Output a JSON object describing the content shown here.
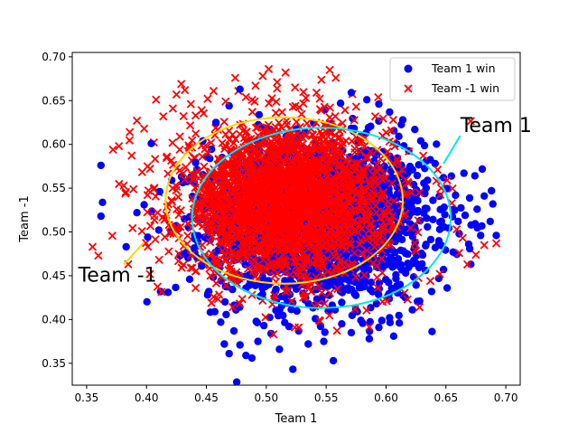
{
  "chart_data": {
    "type": "scatter",
    "title": "",
    "xlabel": "Team 1",
    "ylabel": "Team -1",
    "xlim": [
      0.338,
      0.712
    ],
    "ylim": [
      0.325,
      0.705
    ],
    "xticks": [
      0.35,
      0.4,
      0.45,
      0.5,
      0.55,
      0.6,
      0.65,
      0.7
    ],
    "xtick_labels": [
      "0.35",
      "0.40",
      "0.45",
      "0.50",
      "0.55",
      "0.60",
      "0.65",
      "0.70"
    ],
    "yticks": [
      0.35,
      0.4,
      0.45,
      0.5,
      0.55,
      0.6,
      0.65,
      0.7
    ],
    "ytick_labels": [
      "0.35",
      "0.40",
      "0.45",
      "0.50",
      "0.55",
      "0.60",
      "0.65",
      "0.70"
    ],
    "grid": false,
    "legend_position": "top-right",
    "series": [
      {
        "name": "Team 1 win",
        "marker": "circle",
        "color": "#0000ff",
        "cloud": {
          "center": [
            0.545,
            0.513
          ],
          "sd": [
            0.045,
            0.044
          ],
          "count": 2200
        },
        "points": [
          [
            0.362,
            0.576
          ],
          [
            0.362,
            0.518
          ],
          [
            0.383,
            0.483
          ],
          [
            0.392,
            0.522
          ],
          [
            0.398,
            0.531
          ],
          [
            0.401,
            0.494
          ],
          [
            0.404,
            0.601
          ],
          [
            0.411,
            0.546
          ],
          [
            0.418,
            0.431
          ],
          [
            0.421,
            0.559
          ],
          [
            0.428,
            0.473
          ],
          [
            0.436,
            0.446
          ],
          [
            0.441,
            0.579
          ],
          [
            0.446,
            0.461
          ],
          [
            0.452,
            0.432
          ],
          [
            0.457,
            0.409
          ],
          [
            0.462,
            0.397
          ],
          [
            0.465,
            0.372
          ],
          [
            0.469,
            0.361
          ],
          [
            0.473,
            0.387
          ],
          [
            0.478,
            0.371
          ],
          [
            0.483,
            0.359
          ],
          [
            0.488,
            0.356
          ],
          [
            0.493,
            0.375
          ],
          [
            0.498,
            0.393
          ],
          [
            0.504,
            0.384
          ],
          [
            0.511,
            0.366
          ],
          [
            0.519,
            0.392
          ],
          [
            0.527,
            0.387
          ],
          [
            0.535,
            0.372
          ],
          [
            0.541,
            0.401
          ],
          [
            0.548,
            0.375
          ],
          [
            0.556,
            0.353
          ],
          [
            0.563,
            0.395
          ],
          [
            0.571,
            0.385
          ],
          [
            0.579,
            0.399
          ],
          [
            0.586,
            0.378
          ],
          [
            0.594,
            0.391
          ],
          [
            0.603,
            0.402
          ],
          [
            0.611,
            0.396
          ],
          [
            0.616,
            0.425
          ],
          [
            0.622,
            0.411
          ],
          [
            0.628,
            0.421
          ],
          [
            0.633,
            0.456
          ],
          [
            0.638,
            0.432
          ],
          [
            0.644,
            0.447
          ],
          [
            0.651,
            0.436
          ],
          [
            0.656,
            0.477
          ],
          [
            0.661,
            0.498
          ],
          [
            0.666,
            0.519
          ],
          [
            0.671,
            0.508
          ],
          [
            0.676,
            0.526
          ],
          [
            0.682,
            0.541
          ],
          [
            0.688,
            0.547
          ],
          [
            0.687,
            0.512
          ],
          [
            0.692,
            0.496
          ],
          [
            0.679,
            0.496
          ],
          [
            0.669,
            0.486
          ],
          [
            0.665,
            0.567
          ],
          [
            0.658,
            0.542
          ],
          [
            0.648,
            0.562
          ],
          [
            0.641,
            0.578
          ],
          [
            0.629,
            0.604
          ],
          [
            0.624,
            0.617
          ],
          [
            0.614,
            0.628
          ],
          [
            0.603,
            0.637
          ],
          [
            0.594,
            0.646
          ],
          [
            0.584,
            0.651
          ],
          [
            0.571,
            0.659
          ],
          [
            0.562,
            0.647
          ],
          [
            0.478,
            0.663
          ],
          [
            0.469,
            0.644
          ],
          [
            0.458,
            0.625
          ],
          [
            0.447,
            0.604
          ]
        ]
      },
      {
        "name": "Team -1 win",
        "marker": "x",
        "color": "#ff0000",
        "cloud": {
          "center": [
            0.515,
            0.535
          ],
          "sd": [
            0.043,
            0.042
          ],
          "count": 2400
        },
        "points": [
          [
            0.355,
            0.483
          ],
          [
            0.372,
            0.594
          ],
          [
            0.377,
            0.598
          ],
          [
            0.381,
            0.553
          ],
          [
            0.386,
            0.614
          ],
          [
            0.392,
            0.627
          ],
          [
            0.398,
            0.618
          ],
          [
            0.403,
            0.572
          ],
          [
            0.406,
            0.549
          ],
          [
            0.408,
            0.651
          ],
          [
            0.414,
            0.632
          ],
          [
            0.417,
            0.586
          ],
          [
            0.422,
            0.641
          ],
          [
            0.425,
            0.657
          ],
          [
            0.429,
            0.669
          ],
          [
            0.432,
            0.662
          ],
          [
            0.437,
            0.646
          ],
          [
            0.441,
            0.633
          ],
          [
            0.446,
            0.639
          ],
          [
            0.451,
            0.652
          ],
          [
            0.456,
            0.661
          ],
          [
            0.466,
            0.649
          ],
          [
            0.474,
            0.676
          ],
          [
            0.483,
            0.654
          ],
          [
            0.491,
            0.667
          ],
          [
            0.497,
            0.678
          ],
          [
            0.502,
            0.686
          ],
          [
            0.509,
            0.671
          ],
          [
            0.516,
            0.682
          ],
          [
            0.524,
            0.665
          ],
          [
            0.533,
            0.653
          ],
          [
            0.542,
            0.659
          ],
          [
            0.553,
            0.685
          ],
          [
            0.558,
            0.676
          ],
          [
            0.575,
            0.643
          ],
          [
            0.591,
            0.632
          ],
          [
            0.606,
            0.628
          ],
          [
            0.619,
            0.592
          ],
          [
            0.631,
            0.587
          ],
          [
            0.643,
            0.571
          ],
          [
            0.651,
            0.559
          ],
          [
            0.655,
            0.533
          ],
          [
            0.659,
            0.503
          ],
          [
            0.661,
            0.476
          ],
          [
            0.664,
            0.493
          ],
          [
            0.675,
            0.474
          ],
          [
            0.682,
            0.485
          ],
          [
            0.692,
            0.487
          ],
          [
            0.668,
            0.463
          ],
          [
            0.645,
            0.452
          ],
          [
            0.637,
            0.444
          ],
          [
            0.628,
            0.414
          ],
          [
            0.618,
            0.423
          ],
          [
            0.593,
            0.436
          ],
          [
            0.574,
            0.412
          ],
          [
            0.545,
            0.398
          ],
          [
            0.527,
            0.391
          ],
          [
            0.506,
            0.383
          ],
          [
            0.472,
            0.414
          ],
          [
            0.456,
            0.426
          ],
          [
            0.441,
            0.436
          ],
          [
            0.437,
            0.459
          ],
          [
            0.427,
            0.475
          ],
          [
            0.441,
            0.455
          ]
        ]
      }
    ],
    "ellipses": [
      {
        "color": "#ffd700",
        "center": [
          0.515,
          0.536
        ],
        "rx": 0.099,
        "ry": 0.095
      },
      {
        "color": "#00e5ee",
        "center": [
          0.546,
          0.516
        ],
        "rx": 0.108,
        "ry": 0.103
      }
    ],
    "annotations": [
      {
        "text": "Team 1",
        "color": "#00e5ee",
        "line_from": [
          0.648,
          0.578
        ],
        "line_to": [
          0.662,
          0.61
        ],
        "text_at": [
          0.662,
          0.614
        ]
      },
      {
        "text": "Team -1",
        "color": "#ffd700",
        "line_from": [
          0.398,
          0.488
        ],
        "line_to": [
          0.381,
          0.463
        ],
        "text_at": [
          0.343,
          0.443
        ]
      }
    ]
  }
}
